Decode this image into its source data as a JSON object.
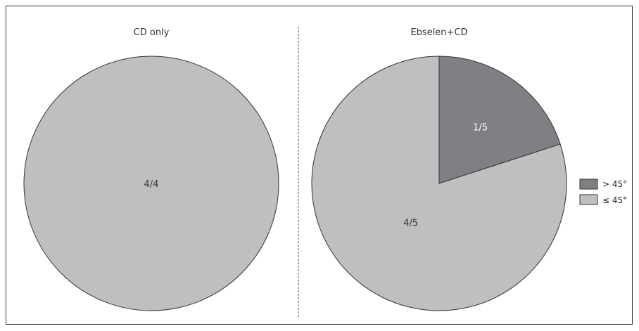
{
  "chart_data": [
    {
      "type": "pie",
      "title": "CD only",
      "slices": [
        {
          "label": "4/4",
          "category": "≤ 45°",
          "value": 4
        }
      ]
    },
    {
      "type": "pie",
      "title": "Ebselen+CD",
      "slices": [
        {
          "label": "1/5",
          "category": "> 45°",
          "value": 1
        },
        {
          "label": "4/5",
          "category": "≤ 45°",
          "value": 4
        }
      ]
    }
  ],
  "legend": [
    {
      "label": "> 45°",
      "color": "#7f8083"
    },
    {
      "label": "≤ 45°",
      "color": "#bfbfc1"
    }
  ],
  "colors": {
    "> 45°": "#7f8083",
    "≤ 45°": "#bfbfc1",
    "label_on_dark": "#ffffff",
    "label_on_light": "#333333"
  }
}
